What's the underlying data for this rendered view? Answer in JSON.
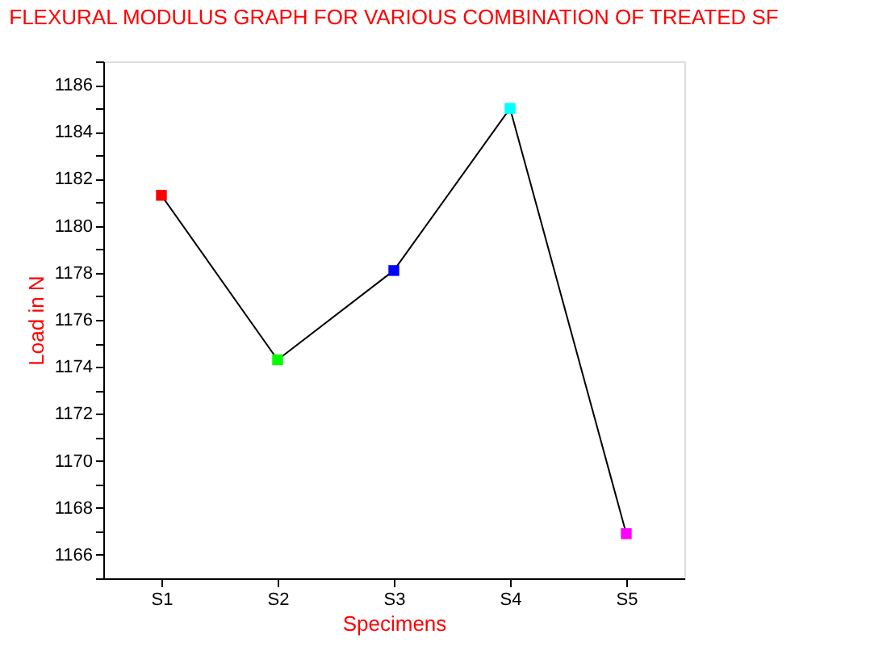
{
  "chart_data": {
    "type": "line",
    "title": "FLEXURAL MODULUS GRAPH FOR VARIOUS COMBINATION OF TREATED SF",
    "xlabel": "Specimens",
    "ylabel": "Load in N",
    "categories": [
      "S1",
      "S2",
      "S3",
      "S4",
      "S5"
    ],
    "series": [
      {
        "color": "#000000",
        "colors": [
          "#ff0000",
          "#00ff00",
          "#0000ff",
          "#00ffff",
          "#ff00ff"
        ],
        "values": [
          1181.3,
          1174.3,
          1178.1,
          1185.0,
          1166.9
        ]
      }
    ],
    "ylim": [
      1165,
      1187
    ],
    "yticks": [
      {
        "value": 1165,
        "label": null
      },
      1166,
      {
        "value": 1167,
        "label": null
      },
      1168,
      {
        "value": 1169,
        "label": null
      },
      1170,
      {
        "value": 1171,
        "label": null
      },
      1172,
      {
        "value": 1173,
        "label": null
      },
      1174,
      {
        "value": 1175,
        "label": null
      },
      1176,
      {
        "value": 1177,
        "label": null
      },
      1178,
      {
        "value": 1179,
        "label": null
      },
      1180,
      {
        "value": 1181,
        "label": null
      },
      1182,
      {
        "value": 1183,
        "label": null
      },
      1184,
      {
        "value": 1185,
        "label": null
      },
      1186,
      {
        "value": 1187,
        "label": null
      }
    ],
    "marker": "square",
    "line_style": "solid",
    "grid": false
  }
}
